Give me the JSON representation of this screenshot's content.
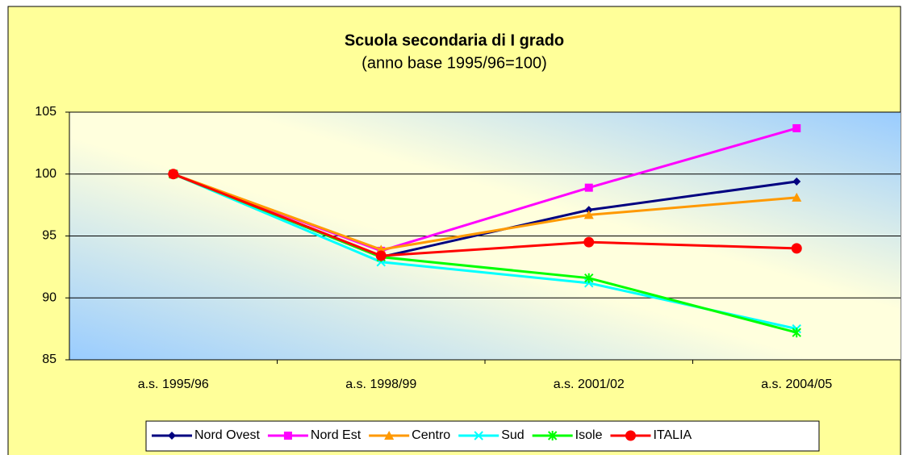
{
  "chart_data": {
    "type": "line",
    "title": "Scuola secondaria di I grado",
    "subtitle": "(anno base 1995/96=100)",
    "categories": [
      "a.s. 1995/96",
      "a.s. 1998/99",
      "a.s. 2001/02",
      "a.s. 2004/05"
    ],
    "series": [
      {
        "name": "Nord Ovest",
        "color": "#000080",
        "marker": "diamond",
        "values": [
          100,
          93.3,
          97.1,
          99.4
        ]
      },
      {
        "name": "Nord Est",
        "color": "#FF00FF",
        "marker": "square",
        "values": [
          100,
          93.8,
          98.9,
          103.7
        ]
      },
      {
        "name": "Centro",
        "color": "#FF9900",
        "marker": "triangle",
        "values": [
          100,
          93.9,
          96.7,
          98.1
        ]
      },
      {
        "name": "Sud",
        "color": "#00FFFF",
        "marker": "x",
        "values": [
          100,
          92.9,
          91.2,
          87.5
        ]
      },
      {
        "name": "Isole",
        "color": "#00FF00",
        "marker": "asterisk",
        "values": [
          100,
          93.3,
          91.6,
          87.2
        ]
      },
      {
        "name": "ITALIA",
        "color": "#FF0000",
        "marker": "circle",
        "values": [
          100,
          93.4,
          94.5,
          94.0
        ]
      }
    ],
    "ylim": [
      85,
      105
    ],
    "yticks": [
      85,
      90,
      95,
      100,
      105
    ],
    "grid": true,
    "legend": "bottom"
  }
}
